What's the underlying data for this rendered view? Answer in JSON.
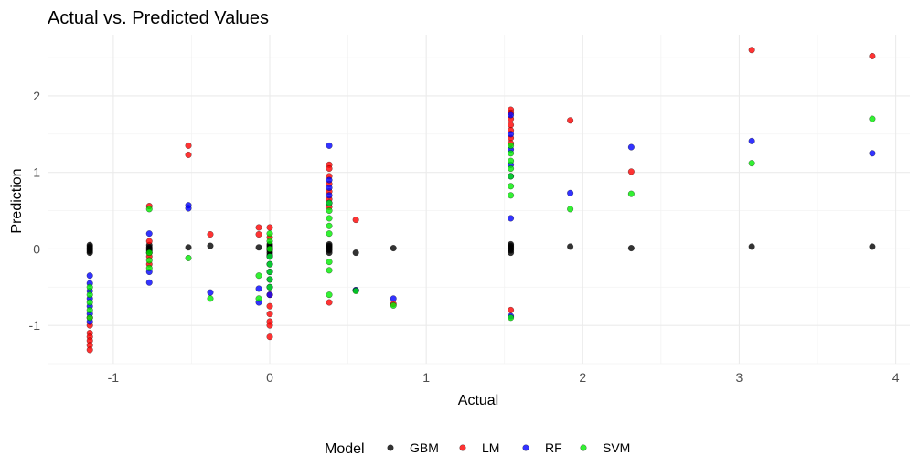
{
  "chart_data": {
    "type": "scatter",
    "title": "Actual vs. Predicted Values",
    "xlabel": "Actual",
    "ylabel": "Prediction",
    "xlim": [
      -1.42,
      4.09
    ],
    "ylim": [
      -1.5,
      2.8
    ],
    "x_ticks": [
      -1,
      0,
      1,
      2,
      3,
      4
    ],
    "y_ticks": [
      -1,
      0,
      1,
      2
    ],
    "grid": true,
    "legend": {
      "title": "Model",
      "position": "bottom"
    },
    "series": [
      {
        "name": "GBM",
        "color": "#000000",
        "points": [
          [
            -1.15,
            0.05
          ],
          [
            -1.15,
            0.03
          ],
          [
            -1.15,
            0.01
          ],
          [
            -1.15,
            -0.01
          ],
          [
            -1.15,
            -0.03
          ],
          [
            -1.15,
            -0.05
          ],
          [
            -0.77,
            0.05
          ],
          [
            -0.77,
            0.02
          ],
          [
            -0.77,
            0.0
          ],
          [
            -0.77,
            -0.02
          ],
          [
            -0.77,
            -0.05
          ],
          [
            -0.52,
            0.02
          ],
          [
            -0.38,
            0.04
          ],
          [
            -0.07,
            0.02
          ],
          [
            0.0,
            0.06
          ],
          [
            0.0,
            0.04
          ],
          [
            0.0,
            0.02
          ],
          [
            0.0,
            0.0
          ],
          [
            0.0,
            -0.02
          ],
          [
            0.0,
            -0.05
          ],
          [
            0.0,
            -0.08
          ],
          [
            0.38,
            0.06
          ],
          [
            0.38,
            0.04
          ],
          [
            0.38,
            0.02
          ],
          [
            0.38,
            0.0
          ],
          [
            0.38,
            -0.02
          ],
          [
            0.38,
            -0.05
          ],
          [
            0.55,
            -0.05
          ],
          [
            0.55,
            -0.54
          ],
          [
            0.79,
            0.01
          ],
          [
            1.54,
            0.06
          ],
          [
            1.54,
            0.04
          ],
          [
            1.54,
            0.02
          ],
          [
            1.54,
            0.0
          ],
          [
            1.54,
            -0.02
          ],
          [
            1.54,
            -0.05
          ],
          [
            1.92,
            0.03
          ],
          [
            2.31,
            0.01
          ],
          [
            3.08,
            0.03
          ],
          [
            3.85,
            0.03
          ]
        ]
      },
      {
        "name": "LM",
        "color": "#ff0000",
        "points": [
          [
            -1.15,
            -0.9
          ],
          [
            -1.15,
            -1.0
          ],
          [
            -1.15,
            -1.1
          ],
          [
            -1.15,
            -1.15
          ],
          [
            -1.15,
            -1.2
          ],
          [
            -1.15,
            -1.26
          ],
          [
            -1.15,
            -1.32
          ],
          [
            -0.77,
            0.56
          ],
          [
            -0.77,
            0.1
          ],
          [
            -0.77,
            -0.1
          ],
          [
            -0.77,
            -0.2
          ],
          [
            -0.52,
            1.35
          ],
          [
            -0.52,
            1.23
          ],
          [
            -0.38,
            0.19
          ],
          [
            -0.07,
            0.28
          ],
          [
            -0.07,
            0.19
          ],
          [
            0.0,
            0.28
          ],
          [
            0.0,
            0.15
          ],
          [
            0.0,
            -0.6
          ],
          [
            0.0,
            -0.75
          ],
          [
            0.0,
            -0.85
          ],
          [
            0.0,
            -0.95
          ],
          [
            0.0,
            -1.0
          ],
          [
            0.0,
            -1.15
          ],
          [
            0.38,
            1.1
          ],
          [
            0.38,
            1.05
          ],
          [
            0.38,
            0.95
          ],
          [
            0.38,
            0.85
          ],
          [
            0.38,
            0.75
          ],
          [
            0.38,
            0.65
          ],
          [
            0.38,
            0.55
          ],
          [
            0.38,
            -0.7
          ],
          [
            0.55,
            0.38
          ],
          [
            0.79,
            -0.72
          ],
          [
            1.54,
            1.82
          ],
          [
            1.54,
            1.78
          ],
          [
            1.54,
            1.7
          ],
          [
            1.54,
            1.62
          ],
          [
            1.54,
            1.55
          ],
          [
            1.54,
            1.45
          ],
          [
            1.54,
            1.38
          ],
          [
            1.54,
            -0.8
          ],
          [
            1.92,
            1.68
          ],
          [
            2.31,
            1.01
          ],
          [
            3.08,
            2.6
          ],
          [
            3.85,
            2.52
          ]
        ]
      },
      {
        "name": "RF",
        "color": "#0000ff",
        "points": [
          [
            -1.15,
            -0.35
          ],
          [
            -1.15,
            -0.45
          ],
          [
            -1.15,
            -0.55
          ],
          [
            -1.15,
            -0.65
          ],
          [
            -1.15,
            -0.75
          ],
          [
            -1.15,
            -0.85
          ],
          [
            -1.15,
            -0.95
          ],
          [
            -0.77,
            0.2
          ],
          [
            -0.77,
            -0.3
          ],
          [
            -0.77,
            -0.44
          ],
          [
            -0.52,
            0.57
          ],
          [
            -0.52,
            0.53
          ],
          [
            -0.38,
            -0.57
          ],
          [
            -0.07,
            -0.52
          ],
          [
            -0.07,
            -0.7
          ],
          [
            0.0,
            -0.1
          ],
          [
            0.0,
            -0.2
          ],
          [
            0.0,
            -0.3
          ],
          [
            0.0,
            -0.4
          ],
          [
            0.0,
            -0.5
          ],
          [
            0.0,
            -0.6
          ],
          [
            0.38,
            1.35
          ],
          [
            0.38,
            0.9
          ],
          [
            0.38,
            0.8
          ],
          [
            0.38,
            0.7
          ],
          [
            0.38,
            0.6
          ],
          [
            0.55,
            -0.54
          ],
          [
            0.79,
            -0.65
          ],
          [
            1.54,
            1.75
          ],
          [
            1.54,
            1.5
          ],
          [
            1.54,
            1.3
          ],
          [
            1.54,
            1.1
          ],
          [
            1.54,
            0.95
          ],
          [
            1.54,
            0.4
          ],
          [
            1.54,
            -0.88
          ],
          [
            1.92,
            0.73
          ],
          [
            2.31,
            1.33
          ],
          [
            3.08,
            1.41
          ],
          [
            3.85,
            1.25
          ]
        ]
      },
      {
        "name": "SVM",
        "color": "#00ee00",
        "points": [
          [
            -1.15,
            -0.5
          ],
          [
            -1.15,
            -0.6
          ],
          [
            -1.15,
            -0.7
          ],
          [
            -1.15,
            -0.8
          ],
          [
            -1.15,
            -0.9
          ],
          [
            -0.77,
            0.52
          ],
          [
            -0.77,
            -0.05
          ],
          [
            -0.77,
            -0.15
          ],
          [
            -0.77,
            -0.25
          ],
          [
            -0.52,
            -0.12
          ],
          [
            -0.38,
            -0.65
          ],
          [
            -0.07,
            -0.35
          ],
          [
            -0.07,
            -0.65
          ],
          [
            0.0,
            0.2
          ],
          [
            0.0,
            0.1
          ],
          [
            0.0,
            0.0
          ],
          [
            0.0,
            -0.1
          ],
          [
            0.0,
            -0.2
          ],
          [
            0.0,
            -0.3
          ],
          [
            0.0,
            -0.4
          ],
          [
            0.0,
            -0.5
          ],
          [
            0.38,
            0.6
          ],
          [
            0.38,
            0.5
          ],
          [
            0.38,
            0.4
          ],
          [
            0.38,
            0.3
          ],
          [
            0.38,
            0.2
          ],
          [
            0.38,
            -0.17
          ],
          [
            0.38,
            -0.28
          ],
          [
            0.38,
            -0.6
          ],
          [
            0.55,
            -0.55
          ],
          [
            0.79,
            -0.74
          ],
          [
            1.54,
            1.35
          ],
          [
            1.54,
            1.25
          ],
          [
            1.54,
            1.15
          ],
          [
            1.54,
            1.05
          ],
          [
            1.54,
            0.95
          ],
          [
            1.54,
            0.82
          ],
          [
            1.54,
            0.7
          ],
          [
            1.54,
            -0.9
          ],
          [
            1.92,
            0.52
          ],
          [
            2.31,
            0.72
          ],
          [
            3.08,
            1.12
          ],
          [
            3.85,
            1.7
          ]
        ]
      }
    ]
  }
}
